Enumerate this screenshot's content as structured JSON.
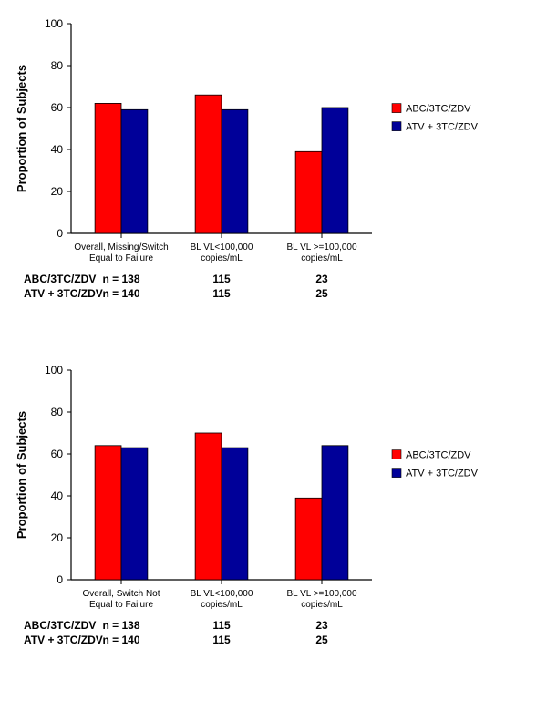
{
  "global": {
    "background_color": "#ffffff",
    "axis_color": "#000000",
    "ylabel": "Proportion of Subjects",
    "ylabel_fontsize": 13,
    "tick_fontsize": 12,
    "cat_fontsize": 10,
    "legend_fontsize": 11,
    "ntable_fontsize": 12,
    "ylim": [
      0,
      100
    ],
    "ytick_step": 20,
    "series": [
      {
        "name": "ABC/3TC/ZDV",
        "color": "#ff0000",
        "legend_marker": "square"
      },
      {
        "name": "ATV + 3TC/ZDV",
        "color": "#000099",
        "legend_marker": "square"
      }
    ],
    "bar_border": "#000000",
    "bar_width_ratio": 0.5,
    "group_gap_ratio": 1.4
  },
  "panels": [
    {
      "id": "panel-missing-switch-failure",
      "categories": [
        {
          "lines": [
            "Overall, Missing/Switch",
            "Equal to Failure"
          ]
        },
        {
          "lines": [
            "BL VL<100,000",
            "copies/mL"
          ]
        },
        {
          "lines": [
            "BL VL >=100,000",
            "copies/mL"
          ]
        }
      ],
      "values": {
        "ABC/3TC/ZDV": [
          62,
          66,
          39
        ],
        "ATV + 3TC/ZDV": [
          59,
          59,
          60
        ]
      },
      "n_table": {
        "ABC/3TC/ZDV": {
          "label": "ABC/3TC/ZDV",
          "prefix": "n = ",
          "values": [
            138,
            115,
            23
          ]
        },
        "ATV + 3TC/ZDV": {
          "label": "ATV + 3TC/ZDV",
          "prefix": "n = ",
          "values": [
            140,
            115,
            25
          ]
        }
      }
    },
    {
      "id": "panel-switch-not-failure",
      "categories": [
        {
          "lines": [
            "Overall, Switch Not",
            "Equal to Failure"
          ]
        },
        {
          "lines": [
            "BL VL<100,000",
            "copies/mL"
          ]
        },
        {
          "lines": [
            "BL VL >=100,000",
            "copies/mL"
          ]
        }
      ],
      "values": {
        "ABC/3TC/ZDV": [
          64,
          70,
          39
        ],
        "ATV + 3TC/ZDV": [
          63,
          63,
          64
        ]
      },
      "n_table": {
        "ABC/3TC/ZDV": {
          "label": "ABC/3TC/ZDV",
          "prefix": "n = ",
          "values": [
            138,
            115,
            23
          ]
        },
        "ATV + 3TC/ZDV": {
          "label": "ATV + 3TC/ZDV",
          "prefix": "n = ",
          "values": [
            140,
            115,
            25
          ]
        }
      }
    }
  ]
}
